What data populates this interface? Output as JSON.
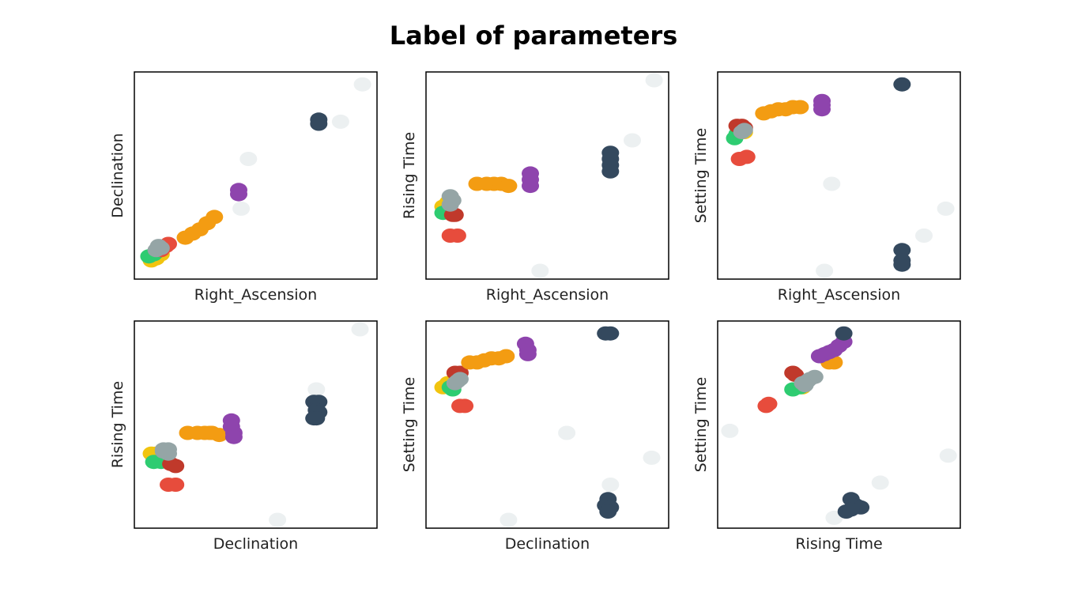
{
  "title": "Label of parameters",
  "colors": {
    "yellow": "#f1c40f",
    "green": "#2ecc71",
    "red": "#e74c3c",
    "darkred": "#c0392b",
    "orange": "#f39c12",
    "gray": "#95a5a6",
    "purple": "#8e44ad",
    "navy": "#34495e",
    "light": "#ecf0f1"
  },
  "chart_data": [
    {
      "type": "scatter",
      "xlabel": "Right_Ascension",
      "ylabel": "Declination",
      "xlim": [
        0,
        100
      ],
      "ylim": [
        0,
        100
      ],
      "series": [
        {
          "color": "light",
          "points": [
            [
              94,
              94
            ],
            [
              85,
              76
            ],
            [
              47,
              58
            ],
            [
              44,
              34
            ]
          ]
        },
        {
          "color": "yellow",
          "points": [
            [
              7,
              9
            ],
            [
              9,
              10
            ],
            [
              11,
              12
            ]
          ]
        },
        {
          "color": "green",
          "points": [
            [
              6,
              11
            ],
            [
              8,
              12
            ],
            [
              9,
              13
            ]
          ]
        },
        {
          "color": "red",
          "points": [
            [
              11,
              14
            ],
            [
              13,
              16
            ],
            [
              14,
              17
            ]
          ]
        },
        {
          "color": "orange",
          "points": [
            [
              21,
              20
            ],
            [
              24,
              22
            ],
            [
              27,
              24
            ],
            [
              30,
              27
            ],
            [
              33,
              30
            ]
          ]
        },
        {
          "color": "gray",
          "points": [
            [
              9,
              14
            ],
            [
              11,
              15
            ],
            [
              10,
              16
            ]
          ]
        },
        {
          "color": "purple",
          "points": [
            [
              43,
              41
            ],
            [
              43,
              43
            ]
          ]
        },
        {
          "color": "navy",
          "points": [
            [
              76,
              75
            ],
            [
              76,
              77
            ]
          ]
        }
      ]
    },
    {
      "type": "scatter",
      "xlabel": "Right_Ascension",
      "ylabel": "Rising Time",
      "xlim": [
        0,
        100
      ],
      "ylim": [
        0,
        100
      ],
      "series": [
        {
          "color": "light",
          "points": [
            [
              94,
              96
            ],
            [
              85,
              67
            ],
            [
              47,
              4
            ]
          ]
        },
        {
          "color": "yellow",
          "points": [
            [
              7,
              35
            ],
            [
              9,
              37
            ]
          ]
        },
        {
          "color": "green",
          "points": [
            [
              7,
              32
            ],
            [
              9,
              33
            ]
          ]
        },
        {
          "color": "darkred",
          "points": [
            [
              11,
              31
            ],
            [
              12,
              31
            ]
          ]
        },
        {
          "color": "red",
          "points": [
            [
              10,
              21
            ],
            [
              13,
              21
            ]
          ]
        },
        {
          "color": "orange",
          "points": [
            [
              21,
              46
            ],
            [
              25,
              46
            ],
            [
              28,
              46
            ],
            [
              31,
              46
            ],
            [
              34,
              45
            ]
          ]
        },
        {
          "color": "gray",
          "points": [
            [
              10,
              36
            ],
            [
              11,
              38
            ],
            [
              10,
              40
            ]
          ]
        },
        {
          "color": "purple",
          "points": [
            [
              43,
              51
            ],
            [
              43,
              48
            ],
            [
              43,
              45
            ]
          ]
        },
        {
          "color": "navy",
          "points": [
            [
              76,
              61
            ],
            [
              76,
              58
            ],
            [
              76,
              55
            ],
            [
              76,
              52
            ]
          ]
        }
      ]
    },
    {
      "type": "scatter",
      "xlabel": "Right_Ascension",
      "ylabel": "Setting Time",
      "xlim": [
        0,
        100
      ],
      "ylim": [
        0,
        100
      ],
      "series": [
        {
          "color": "light",
          "points": [
            [
              47,
              46
            ],
            [
              94,
              34
            ],
            [
              85,
              21
            ],
            [
              44,
              4
            ]
          ]
        },
        {
          "color": "yellow",
          "points": [
            [
              10,
              72
            ],
            [
              11,
              71
            ]
          ]
        },
        {
          "color": "green",
          "points": [
            [
              7,
              68
            ],
            [
              8,
              70
            ]
          ]
        },
        {
          "color": "darkred",
          "points": [
            [
              8,
              74
            ],
            [
              10,
              74
            ],
            [
              11,
              73
            ]
          ]
        },
        {
          "color": "red",
          "points": [
            [
              9,
              58
            ],
            [
              12,
              59
            ]
          ]
        },
        {
          "color": "orange",
          "points": [
            [
              19,
              80
            ],
            [
              22,
              81
            ],
            [
              25,
              82
            ],
            [
              28,
              82
            ],
            [
              31,
              83
            ],
            [
              34,
              83
            ]
          ]
        },
        {
          "color": "gray",
          "points": [
            [
              10,
              71
            ],
            [
              11,
              72
            ]
          ]
        },
        {
          "color": "purple",
          "points": [
            [
              43,
              86
            ],
            [
              43,
              84
            ],
            [
              43,
              82
            ]
          ]
        },
        {
          "color": "navy",
          "points": [
            [
              76,
              94
            ],
            [
              76,
              14
            ],
            [
              76,
              9
            ],
            [
              76,
              7
            ]
          ]
        }
      ]
    },
    {
      "type": "scatter",
      "xlabel": "Declination",
      "ylabel": "Rising Time",
      "xlim": [
        0,
        100
      ],
      "ylim": [
        0,
        100
      ],
      "series": [
        {
          "color": "light",
          "points": [
            [
              93,
              96
            ],
            [
              75,
              67
            ],
            [
              59,
              4
            ]
          ]
        },
        {
          "color": "yellow",
          "points": [
            [
              7,
              36
            ],
            [
              9,
              36
            ]
          ]
        },
        {
          "color": "green",
          "points": [
            [
              8,
              32
            ],
            [
              11,
              32
            ]
          ]
        },
        {
          "color": "darkred",
          "points": [
            [
              15,
              31
            ],
            [
              17,
              30
            ]
          ]
        },
        {
          "color": "red",
          "points": [
            [
              14,
              21
            ],
            [
              17,
              21
            ]
          ]
        },
        {
          "color": "orange",
          "points": [
            [
              22,
              46
            ],
            [
              26,
              46
            ],
            [
              29,
              46
            ],
            [
              32,
              46
            ],
            [
              35,
              45
            ],
            [
              31,
              46
            ]
          ]
        },
        {
          "color": "gray",
          "points": [
            [
              12,
              37
            ],
            [
              14,
              36
            ],
            [
              12,
              38
            ],
            [
              14,
              38
            ]
          ]
        },
        {
          "color": "purple",
          "points": [
            [
              40,
              52
            ],
            [
              40,
              49
            ],
            [
              41,
              46
            ],
            [
              41,
              44
            ]
          ]
        },
        {
          "color": "navy",
          "points": [
            [
              74,
              61
            ],
            [
              76,
              61
            ],
            [
              75,
              57
            ],
            [
              76,
              56
            ],
            [
              74,
              53
            ],
            [
              75,
              53
            ]
          ]
        }
      ]
    },
    {
      "type": "scatter",
      "xlabel": "Declination",
      "ylabel": "Setting Time",
      "xlim": [
        0,
        100
      ],
      "ylim": [
        0,
        100
      ],
      "series": [
        {
          "color": "light",
          "points": [
            [
              58,
              46
            ],
            [
              93,
              34
            ],
            [
              76,
              21
            ],
            [
              34,
              4
            ]
          ]
        },
        {
          "color": "yellow",
          "points": [
            [
              7,
              68
            ],
            [
              9,
              70
            ]
          ]
        },
        {
          "color": "green",
          "points": [
            [
              10,
              68
            ],
            [
              11,
              67
            ]
          ]
        },
        {
          "color": "darkred",
          "points": [
            [
              12,
              75
            ],
            [
              14,
              75
            ],
            [
              13,
              73
            ]
          ]
        },
        {
          "color": "red",
          "points": [
            [
              14,
              59
            ],
            [
              16,
              59
            ]
          ]
        },
        {
          "color": "orange",
          "points": [
            [
              18,
              80
            ],
            [
              21,
              80
            ],
            [
              24,
              81
            ],
            [
              27,
              82
            ],
            [
              30,
              82
            ],
            [
              33,
              83
            ]
          ]
        },
        {
          "color": "gray",
          "points": [
            [
              13,
              71
            ],
            [
              14,
              72
            ],
            [
              12,
              70
            ]
          ]
        },
        {
          "color": "purple",
          "points": [
            [
              41,
              89
            ],
            [
              42,
              86
            ],
            [
              42,
              84
            ]
          ]
        },
        {
          "color": "navy",
          "points": [
            [
              74,
              94
            ],
            [
              76,
              94
            ],
            [
              75,
              14
            ],
            [
              74,
              11
            ],
            [
              76,
              10
            ],
            [
              75,
              8
            ]
          ]
        }
      ]
    },
    {
      "type": "scatter",
      "xlabel": "Rising Time",
      "ylabel": "Setting Time",
      "xlim": [
        0,
        100
      ],
      "ylim": [
        0,
        100
      ],
      "series": [
        {
          "color": "light",
          "points": [
            [
              5,
              47
            ],
            [
              95,
              35
            ],
            [
              67,
              22
            ],
            [
              48,
              5
            ]
          ]
        },
        {
          "color": "yellow",
          "points": [
            [
              35,
              68
            ],
            [
              36,
              70
            ]
          ]
        },
        {
          "color": "orange",
          "points": [
            [
              46,
              80
            ],
            [
              48,
              80
            ]
          ]
        },
        {
          "color": "green",
          "points": [
            [
              31,
              67
            ],
            [
              34,
              68
            ]
          ]
        },
        {
          "color": "darkred",
          "points": [
            [
              31,
              75
            ],
            [
              32,
              74
            ]
          ]
        },
        {
          "color": "red",
          "points": [
            [
              20,
              59
            ],
            [
              21,
              60
            ]
          ]
        },
        {
          "color": "gray",
          "points": [
            [
              35,
              70
            ],
            [
              37,
              71
            ],
            [
              38,
              72
            ],
            [
              40,
              73
            ],
            [
              37,
              71
            ],
            [
              36,
              69
            ]
          ]
        },
        {
          "color": "purple",
          "points": [
            [
              42,
              83
            ],
            [
              44,
              84
            ],
            [
              46,
              85
            ],
            [
              48,
              86
            ],
            [
              50,
              88
            ],
            [
              52,
              90
            ]
          ]
        },
        {
          "color": "navy",
          "points": [
            [
              52,
              94
            ],
            [
              55,
              14
            ],
            [
              57,
              11
            ],
            [
              59,
              10
            ],
            [
              53,
              8
            ],
            [
              55,
              9
            ]
          ]
        }
      ]
    }
  ]
}
